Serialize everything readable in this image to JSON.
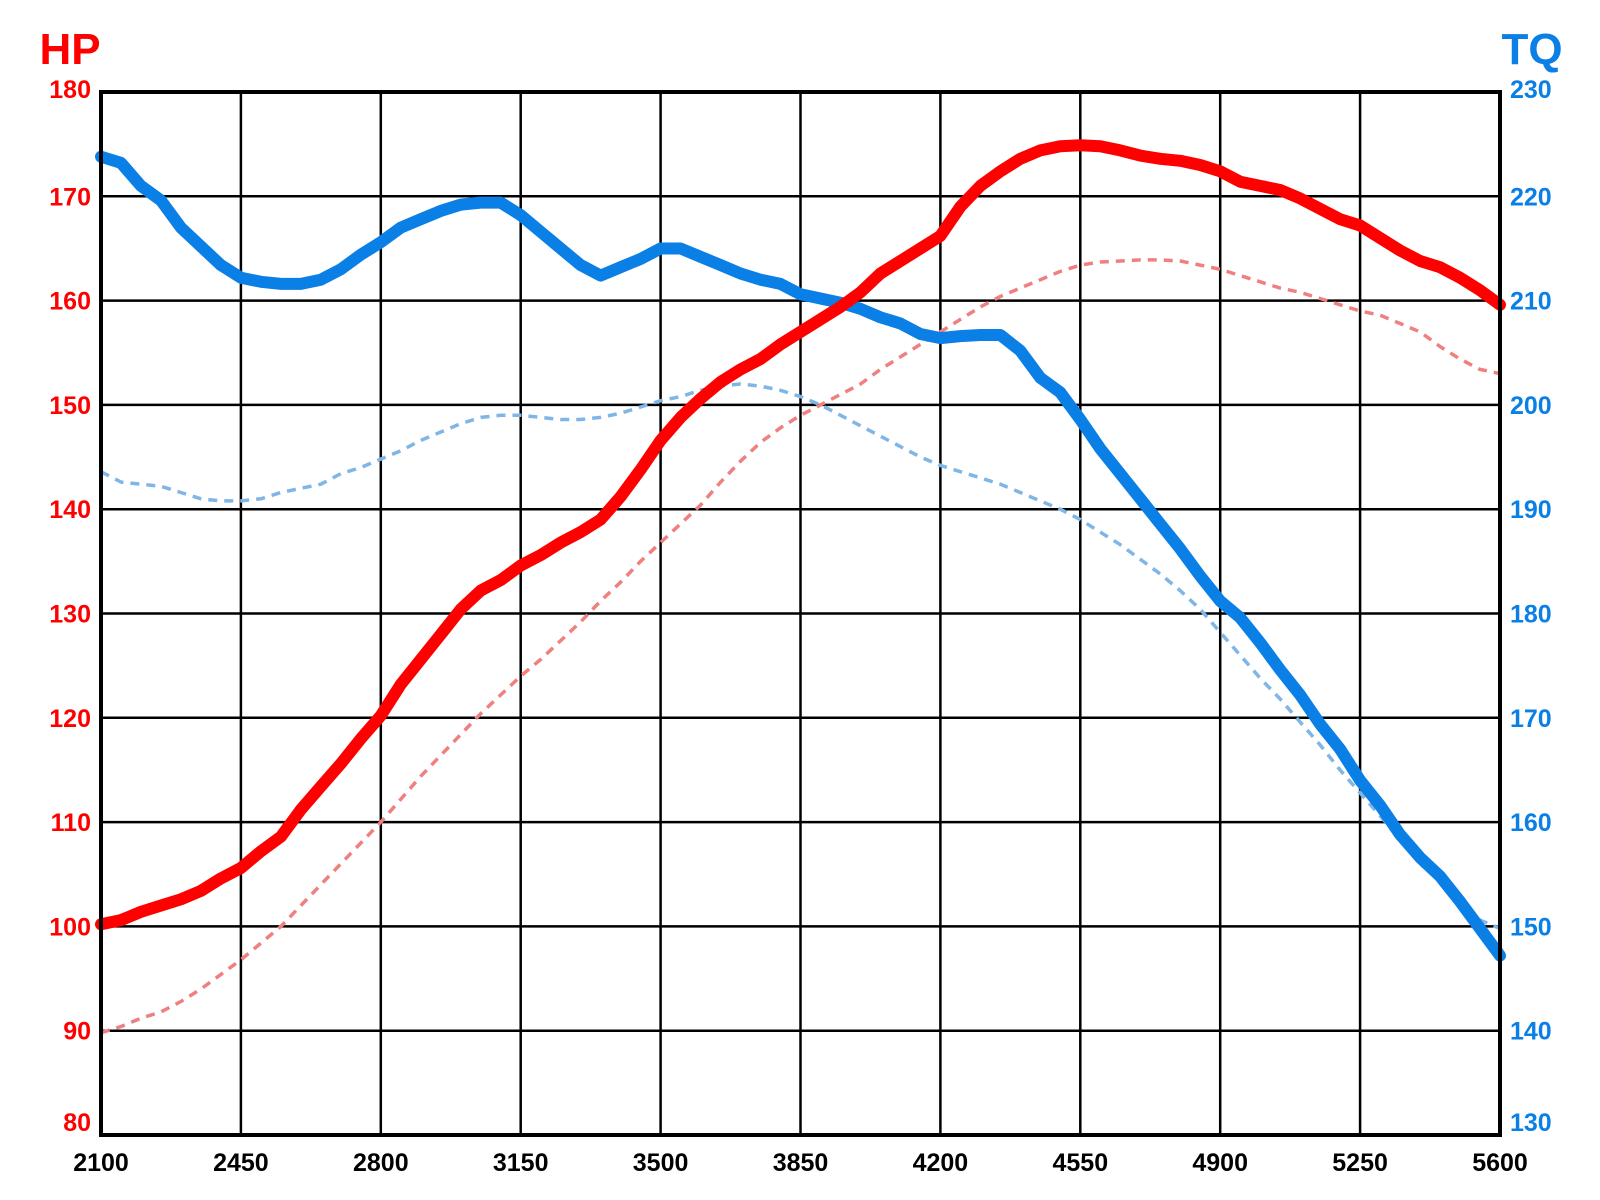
{
  "chart_data": {
    "type": "line",
    "title": "",
    "xlabel": "",
    "y_left_label": "HP",
    "y_right_label": "TQ",
    "xlim": [
      2100,
      5600
    ],
    "y_left_lim": [
      80,
      180
    ],
    "y_right_lim": [
      130,
      230
    ],
    "x_ticks": [
      "2100",
      "2450",
      "2800",
      "3150",
      "3500",
      "3850",
      "4200",
      "4550",
      "4900",
      "5250",
      "5600"
    ],
    "y_left_ticks": [
      "80",
      "90",
      "100",
      "110",
      "120",
      "130",
      "140",
      "150",
      "160",
      "170",
      "180"
    ],
    "y_right_ticks": [
      "130",
      "140",
      "150",
      "160",
      "170",
      "180",
      "190",
      "200",
      "210",
      "220",
      "230"
    ],
    "grid": true,
    "colors": {
      "hp": "#ff0000",
      "tq": "#0a7fe6",
      "hp_dashed": "#f08080",
      "tq_dashed": "#7fb6e6"
    },
    "series": [
      {
        "axis": "left",
        "style": "solid",
        "color": "#ff0000",
        "x": [
          2100,
          2150,
          2200,
          2250,
          2300,
          2350,
          2400,
          2450,
          2500,
          2550,
          2600,
          2650,
          2700,
          2750,
          2800,
          2850,
          2900,
          2950,
          3000,
          3050,
          3100,
          3150,
          3200,
          3250,
          3300,
          3350,
          3400,
          3450,
          3500,
          3550,
          3600,
          3650,
          3700,
          3750,
          3800,
          3850,
          3900,
          3950,
          4000,
          4050,
          4100,
          4150,
          4200,
          4250,
          4300,
          4350,
          4400,
          4450,
          4500,
          4550,
          4600,
          4650,
          4700,
          4750,
          4800,
          4850,
          4900,
          4950,
          5000,
          5050,
          5100,
          5150,
          5200,
          5250,
          5300,
          5350,
          5400,
          5450,
          5500,
          5550,
          5600
        ],
        "y": [
          100.2,
          100.6,
          101.4,
          102.0,
          102.6,
          103.4,
          104.6,
          105.6,
          107.2,
          108.6,
          111.2,
          113.4,
          115.6,
          118.0,
          120.2,
          123.2,
          125.6,
          128.0,
          130.4,
          132.2,
          133.2,
          134.6,
          135.6,
          136.8,
          137.8,
          139.0,
          141.2,
          143.8,
          146.6,
          148.8,
          150.6,
          152.2,
          153.4,
          154.4,
          155.8,
          157.0,
          158.2,
          159.4,
          160.8,
          162.6,
          163.8,
          165.0,
          166.2,
          169.0,
          171.0,
          172.4,
          173.6,
          174.4,
          174.8,
          174.9,
          174.8,
          174.4,
          173.9,
          173.6,
          173.4,
          173.0,
          172.4,
          171.4,
          171.0,
          170.6,
          169.8,
          168.8,
          167.8,
          167.2,
          166.0,
          164.8,
          163.8,
          163.2,
          162.2,
          161.0,
          159.6
        ]
      },
      {
        "axis": "right",
        "style": "solid",
        "color": "#0a7fe6",
        "x": [
          2100,
          2150,
          2200,
          2250,
          2300,
          2350,
          2400,
          2450,
          2500,
          2550,
          2600,
          2650,
          2700,
          2750,
          2800,
          2850,
          2900,
          2950,
          3000,
          3050,
          3100,
          3150,
          3200,
          3250,
          3300,
          3350,
          3400,
          3450,
          3500,
          3550,
          3600,
          3650,
          3700,
          3750,
          3800,
          3850,
          3900,
          3950,
          4000,
          4050,
          4100,
          4150,
          4200,
          4250,
          4300,
          4350,
          4400,
          4450,
          4500,
          4550,
          4600,
          4650,
          4700,
          4750,
          4800,
          4850,
          4900,
          4950,
          5000,
          5050,
          5100,
          5150,
          5200,
          5250,
          5300,
          5350,
          5400,
          5450,
          5500,
          5550,
          5600
        ],
        "y": [
          223.8,
          223.2,
          221.0,
          219.6,
          217.0,
          215.2,
          213.4,
          212.2,
          211.8,
          211.6,
          211.6,
          212.0,
          213.0,
          214.4,
          215.6,
          217.0,
          217.8,
          218.6,
          219.2,
          219.4,
          219.4,
          218.2,
          216.6,
          215.0,
          213.4,
          212.4,
          213.2,
          214.0,
          215.0,
          215.0,
          214.2,
          213.4,
          212.6,
          212.0,
          211.6,
          210.6,
          210.2,
          209.8,
          209.2,
          208.4,
          207.8,
          206.8,
          206.4,
          206.6,
          206.7,
          206.7,
          205.2,
          202.6,
          201.2,
          198.6,
          195.8,
          193.4,
          191.0,
          188.6,
          186.2,
          183.6,
          181.2,
          179.6,
          177.2,
          174.6,
          172.2,
          169.4,
          167.0,
          164.0,
          161.6,
          158.8,
          156.6,
          154.8,
          152.4,
          149.8,
          147.2
        ]
      },
      {
        "axis": "left",
        "style": "dashed",
        "color": "#f08080",
        "x": [
          2100,
          2150,
          2200,
          2250,
          2300,
          2350,
          2400,
          2450,
          2500,
          2550,
          2600,
          2650,
          2700,
          2750,
          2800,
          2850,
          2900,
          2950,
          3000,
          3050,
          3100,
          3150,
          3200,
          3250,
          3300,
          3350,
          3400,
          3450,
          3500,
          3550,
          3600,
          3650,
          3700,
          3750,
          3800,
          3850,
          3900,
          3950,
          4000,
          4050,
          4100,
          4150,
          4200,
          4250,
          4300,
          4350,
          4400,
          4450,
          4500,
          4550,
          4600,
          4650,
          4700,
          4750,
          4800,
          4850,
          4900,
          4950,
          5000,
          5050,
          5100,
          5150,
          5200,
          5250,
          5300,
          5350,
          5400,
          5450,
          5500,
          5550,
          5600
        ],
        "y": [
          89.8,
          90.4,
          91.2,
          91.8,
          92.8,
          94.0,
          95.4,
          96.8,
          98.4,
          100.0,
          102.0,
          104.0,
          106.0,
          108.0,
          110.0,
          112.2,
          114.4,
          116.4,
          118.4,
          120.4,
          122.2,
          124.0,
          125.6,
          127.4,
          129.2,
          131.2,
          133.0,
          135.0,
          136.8,
          138.6,
          140.4,
          142.6,
          144.6,
          146.4,
          147.8,
          149.0,
          150.0,
          151.0,
          152.0,
          153.4,
          154.6,
          155.8,
          157.0,
          158.2,
          159.4,
          160.4,
          161.2,
          162.0,
          162.8,
          163.4,
          163.7,
          163.8,
          163.9,
          163.9,
          163.8,
          163.4,
          163.0,
          162.4,
          161.8,
          161.2,
          160.8,
          160.2,
          159.6,
          159.0,
          158.6,
          157.8,
          157.0,
          155.6,
          154.4,
          153.4,
          153.0
        ]
      },
      {
        "axis": "right",
        "style": "dashed",
        "color": "#7fb6e6",
        "x": [
          2100,
          2150,
          2200,
          2250,
          2300,
          2350,
          2400,
          2450,
          2500,
          2550,
          2600,
          2650,
          2700,
          2750,
          2800,
          2850,
          2900,
          2950,
          3000,
          3050,
          3100,
          3150,
          3200,
          3250,
          3300,
          3350,
          3400,
          3450,
          3500,
          3550,
          3600,
          3650,
          3700,
          3750,
          3800,
          3850,
          3900,
          3950,
          4000,
          4050,
          4100,
          4150,
          4200,
          4250,
          4300,
          4350,
          4400,
          4450,
          4500,
          4550,
          4600,
          4650,
          4700,
          4750,
          4800,
          4850,
          4900,
          4950,
          5000,
          5050,
          5100,
          5150,
          5200,
          5250,
          5300,
          5350,
          5400,
          5450,
          5500,
          5550,
          5600
        ],
        "y": [
          193.6,
          192.6,
          192.4,
          192.2,
          191.6,
          191.0,
          190.8,
          190.8,
          191.0,
          191.6,
          192.0,
          192.4,
          193.4,
          194.0,
          194.8,
          195.6,
          196.6,
          197.4,
          198.2,
          198.8,
          199.0,
          199.0,
          198.8,
          198.6,
          198.6,
          198.8,
          199.2,
          199.8,
          200.4,
          200.8,
          201.4,
          201.8,
          202.0,
          201.8,
          201.4,
          200.8,
          200.0,
          199.0,
          198.0,
          197.0,
          196.0,
          195.0,
          194.2,
          193.6,
          193.0,
          192.4,
          191.6,
          190.8,
          190.0,
          189.0,
          187.8,
          186.6,
          185.2,
          183.8,
          182.2,
          180.4,
          178.2,
          176.0,
          173.8,
          171.8,
          169.6,
          167.4,
          165.0,
          162.8,
          160.6,
          158.4,
          156.4,
          154.4,
          152.2,
          150.6,
          149.8
        ]
      }
    ]
  }
}
